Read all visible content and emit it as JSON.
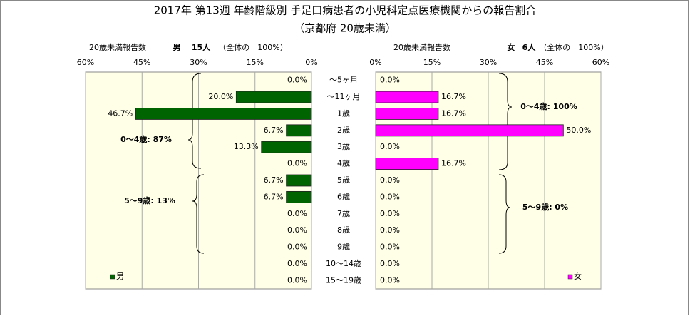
{
  "chart_data": {
    "type": "bar",
    "orientation": "horizontal",
    "title": "2017年 第13週 年齢階級別 手足口病患者の小児科定点医療機関からの報告割合",
    "subtitle": "（京都府 20歳未満）",
    "categories": [
      "～5ヶ月",
      "～11ヶ月",
      "1歳",
      "2歳",
      "3歳",
      "4歳",
      "5歳",
      "6歳",
      "7歳",
      "8歳",
      "9歳",
      "10～14歳",
      "15～19歳"
    ],
    "series": [
      {
        "name": "男",
        "color": "#006400",
        "values": [
          0,
          20,
          46.7,
          6.7,
          13.3,
          0,
          6.7,
          6.7,
          0,
          0,
          0,
          0,
          0
        ],
        "value_labels": [
          "0.0%",
          "20.0%",
          "46.7%",
          "6.7%",
          "13.3%",
          "0.0%",
          "6.7%",
          "6.7%",
          "0.0%",
          "0.0%",
          "0.0%",
          "0.0%",
          "0.0%"
        ]
      },
      {
        "name": "女",
        "color": "#ff00ff",
        "values": [
          0,
          16.7,
          16.7,
          50,
          0,
          16.7,
          0,
          0,
          0,
          0,
          0,
          0,
          0
        ],
        "value_labels": [
          "0.0%",
          "16.7%",
          "16.7%",
          "50.0%",
          "0.0%",
          "16.7%",
          "0.0%",
          "0.0%",
          "0.0%",
          "0.0%",
          "0.0%",
          "0.0%",
          "0.0%"
        ]
      }
    ],
    "panels": [
      {
        "header": {
          "label": "20歳未満報告数",
          "count": "15人",
          "share": "（全体の　100%）"
        },
        "x_reversed": true,
        "xlim": [
          0,
          60
        ],
        "xticks": [
          {
            "value": 60,
            "label": "60%"
          },
          {
            "value": 45,
            "label": "45%"
          },
          {
            "value": 30,
            "label": "30%"
          },
          {
            "value": 15,
            "label": "15%"
          },
          {
            "value": 0,
            "label": "0%"
          }
        ],
        "annotations": [
          "0～4歳: 87%",
          "5～9歳: 13%"
        ]
      },
      {
        "header": {
          "label": "20歳未満報告数",
          "count": "6人",
          "share": "（全体の　100%）"
        },
        "x_reversed": false,
        "xlim": [
          0,
          60
        ],
        "xticks": [
          {
            "value": 0,
            "label": "0%"
          },
          {
            "value": 15,
            "label": "15%"
          },
          {
            "value": 30,
            "label": "30%"
          },
          {
            "value": 45,
            "label": "45%"
          },
          {
            "value": 60,
            "label": "60%"
          }
        ],
        "annotations": [
          "0～4歳: 100%",
          "5～9歳: 0%"
        ]
      }
    ],
    "grid": true
  }
}
